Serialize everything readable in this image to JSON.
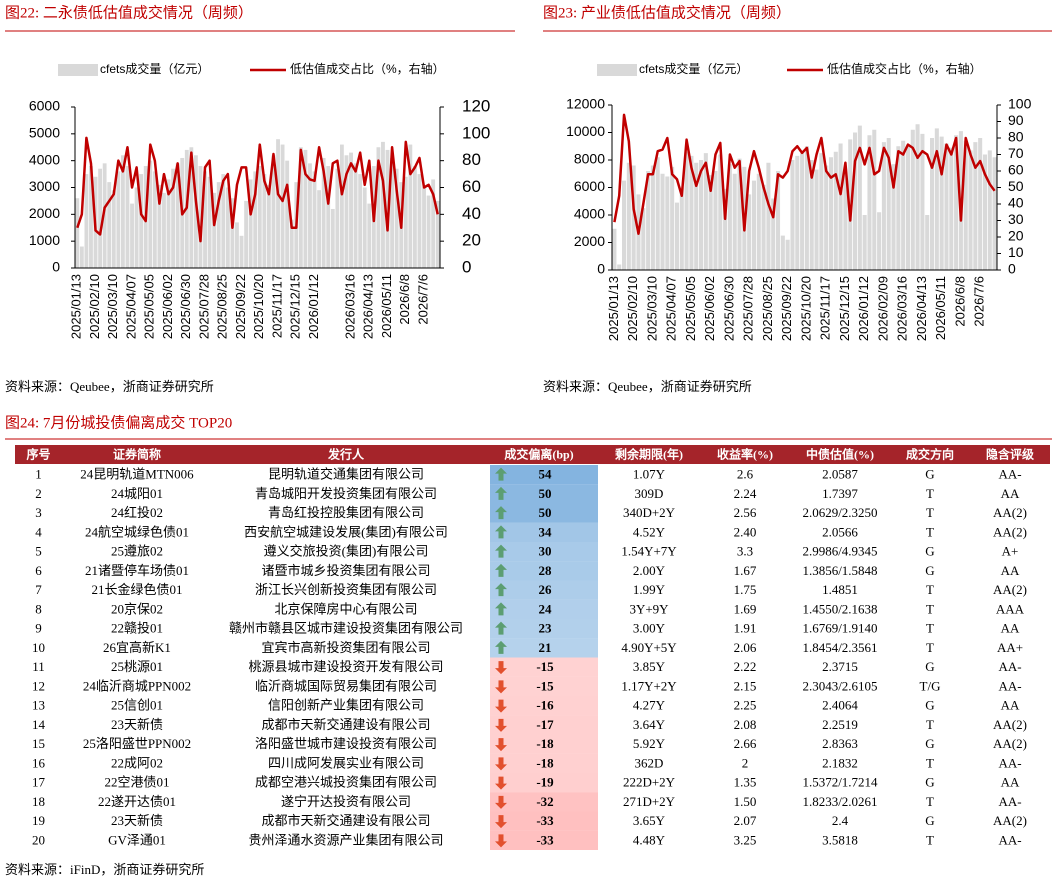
{
  "chart_data": [
    {
      "type": "bar_line",
      "title": "图22:  二永债低估值成交情况（周频）",
      "source": "资料来源：Qeubee，浙商证券研究所",
      "legend": "top",
      "grid": false,
      "categories": [
        "2025/01/13",
        null,
        null,
        null,
        "2025/02/10",
        null,
        null,
        null,
        "2025/03/10",
        null,
        null,
        null,
        "2025/04/07",
        null,
        null,
        null,
        "2025/05/05",
        null,
        null,
        null,
        "2025/06/02",
        null,
        null,
        null,
        "2025/06/30",
        null,
        null,
        null,
        "2025/07/28",
        null,
        null,
        null,
        "2025/08/25",
        null,
        null,
        null,
        "2025/09/22",
        null,
        null,
        null,
        "2025/10/20",
        null,
        null,
        null,
        "2025/11/17",
        null,
        null,
        null,
        "2025/12/15",
        null,
        null,
        null,
        "2026/01/12",
        null,
        null,
        null,
        null,
        null,
        null,
        null,
        "2026/03/16",
        null,
        null,
        null,
        "2026/04/13",
        null,
        null,
        null,
        "2026/05/11",
        null,
        null,
        null,
        "2026/6/8",
        null,
        null,
        null,
        "2026/7/6",
        null,
        null,
        null
      ],
      "series": [
        {
          "name": "cfets成交量（亿元）",
          "color": "#d9d9d9",
          "kind": "bar",
          "values": [
            2600,
            800,
            3500,
            3800,
            3400,
            3700,
            3900,
            3200,
            2900,
            3600,
            4200,
            3800,
            2400,
            3000,
            3500,
            3800,
            4000,
            3600,
            3100,
            2800,
            3300,
            3700,
            3900,
            4100,
            4400,
            4500,
            4200,
            3800,
            3600,
            3400,
            2800,
            3200,
            3500,
            3000,
            2600,
            1700,
            1200,
            2500,
            3300,
            3600,
            3800,
            3500,
            3100,
            4200,
            4800,
            4600,
            4000,
            1800,
            3200,
            4500,
            4400,
            3900,
            3600,
            2900,
            4100,
            3800,
            2200,
            3700,
            4600,
            4200,
            4300,
            3900,
            3500,
            3000,
            2400,
            3800,
            4500,
            4700,
            4400,
            4100,
            3700,
            3200,
            3400,
            4600,
            3800,
            3500,
            3000,
            2700,
            3300,
            2500
          ]
        },
        {
          "name": "低估值成交占比（%，右轴）",
          "color": "#c00000",
          "kind": "line",
          "axis": "y2",
          "values": [
            30,
            40,
            97,
            78,
            28,
            25,
            45,
            50,
            55,
            80,
            72,
            90,
            60,
            75,
            40,
            35,
            92,
            80,
            48,
            70,
            55,
            60,
            78,
            40,
            45,
            86,
            50,
            20,
            75,
            80,
            32,
            50,
            65,
            70,
            30,
            62,
            75,
            75,
            40,
            55,
            92,
            65,
            55,
            85,
            55,
            50,
            62,
            30,
            30,
            88,
            70,
            66,
            65,
            90,
            72,
            48,
            78,
            80,
            55,
            70,
            78,
            72,
            86,
            62,
            80,
            35,
            80,
            65,
            28,
            90,
            58,
            30,
            94,
            70,
            75,
            82,
            60,
            62,
            55,
            40
          ]
        }
      ],
      "ylim": [
        0,
        6000
      ],
      "yticks": [
        0,
        1000,
        2000,
        3000,
        4000,
        5000,
        6000
      ],
      "y2lim": [
        0,
        120
      ],
      "y2ticks": [
        0,
        20,
        40,
        60,
        80,
        100,
        120
      ]
    },
    {
      "type": "bar_line",
      "title": "图23:  产业债低估值成交情况（周频）",
      "source": "资料来源：Qeubee，浙商证券研究所",
      "legend": "top",
      "grid": false,
      "categories": [
        "2025/01/13",
        null,
        null,
        null,
        "2025/02/10",
        null,
        null,
        null,
        "2025/03/10",
        null,
        null,
        null,
        "2025/04/07",
        null,
        null,
        null,
        "2025/05/05",
        null,
        null,
        null,
        "2025/06/02",
        null,
        null,
        null,
        "2025/06/30",
        null,
        null,
        null,
        "2025/07/28",
        null,
        null,
        null,
        "2025/08/25",
        null,
        null,
        null,
        "2025/09/22",
        null,
        null,
        null,
        "2025/10/20",
        null,
        null,
        null,
        "2025/11/17",
        null,
        null,
        null,
        "2025/12/15",
        null,
        null,
        null,
        "2026/01/12",
        null,
        null,
        null,
        "2026/02/09",
        null,
        null,
        null,
        "2026/03/16",
        null,
        null,
        null,
        "2026/04/13",
        null,
        null,
        null,
        "2026/05/11",
        null,
        null,
        null,
        "2026/6/8",
        null,
        null,
        null,
        "2026/7/6",
        null,
        null,
        null
      ],
      "series": [
        {
          "name": "cfets成交量（亿元）",
          "color": "#d9d9d9",
          "kind": "bar",
          "values": [
            3000,
            400,
            6500,
            7800,
            7600,
            5500,
            4500,
            7200,
            7600,
            8200,
            7000,
            6800,
            7500,
            4900,
            6000,
            8600,
            8300,
            7800,
            8000,
            8500,
            6900,
            7200,
            8400,
            5900,
            7700,
            7000,
            8100,
            7500,
            5500,
            6500,
            7000,
            6200,
            7800,
            5200,
            7200,
            2500,
            2200,
            8000,
            8300,
            8500,
            9000,
            8000,
            7300,
            8500,
            7600,
            8200,
            8600,
            9200,
            7000,
            9500,
            10000,
            10500,
            4000,
            9800,
            10200,
            4200,
            9300,
            9600,
            7700,
            9000,
            9400,
            9000,
            10200,
            10600,
            9900,
            4000,
            9600,
            10300,
            9700,
            9200,
            8900,
            9800,
            10100,
            9400,
            8700,
            9300,
            9600,
            8400,
            8700,
            8200
          ]
        },
        {
          "name": "低估值成交占比（%，右轴）",
          "color": "#c00000",
          "kind": "line",
          "axis": "y2",
          "values": [
            29,
            45,
            94,
            78,
            37,
            22,
            40,
            58,
            58,
            72,
            73,
            80,
            58,
            55,
            45,
            79,
            62,
            51,
            60,
            65,
            48,
            70,
            77,
            31,
            70,
            62,
            66,
            24,
            60,
            72,
            62,
            50,
            40,
            32,
            58,
            56,
            60,
            72,
            75,
            71,
            74,
            56,
            70,
            80,
            60,
            56,
            58,
            46,
            65,
            30,
            66,
            74,
            64,
            74,
            58,
            60,
            74,
            68,
            50,
            72,
            70,
            76,
            74,
            68,
            72,
            70,
            62,
            72,
            58,
            76,
            70,
            80,
            30,
            80,
            70,
            62,
            66,
            58,
            52,
            48
          ]
        }
      ],
      "ylim": [
        0,
        12000
      ],
      "yticks": [
        0,
        2000,
        4000,
        6000,
        8000,
        10000,
        12000
      ],
      "y2lim": [
        0,
        100
      ],
      "y2ticks": [
        0,
        10,
        20,
        30,
        40,
        50,
        60,
        70,
        80,
        90,
        100
      ]
    }
  ],
  "table": {
    "caption": "图24:  7月份城投债偏离成交 TOP20",
    "source": "资料来源：iFinD，浙商证券研究所",
    "header": [
      "序号",
      "证券简称",
      "发行人",
      "成交偏离(bp)",
      "剩余期限(年)",
      "收益率(%)",
      "中债估值(%)",
      "成交方向",
      "隐含评级"
    ],
    "rows": [
      [
        "1",
        "24昆明轨道MTN006",
        "昆明轨道交通集团有限公司",
        54,
        "1.07Y",
        "2.6",
        "2.0587",
        "G",
        "AA-"
      ],
      [
        "2",
        "24城阳01",
        "青岛城阳开发投资集团有限公司",
        50,
        "309D",
        "2.24",
        "1.7397",
        "T",
        "AA"
      ],
      [
        "3",
        "24红投02",
        "青岛红投控股集团有限公司",
        50,
        "340D+2Y",
        "2.56",
        "2.0629/2.3250",
        "T",
        "AA(2)"
      ],
      [
        "4",
        "24航空城绿色债01",
        "西安航空城建设发展(集团)有限公司",
        34,
        "4.52Y",
        "2.40",
        "2.0566",
        "T",
        "AA(2)"
      ],
      [
        "5",
        "25遵旅02",
        "遵义交旅投资(集团)有限公司",
        30,
        "1.54Y+7Y",
        "3.3",
        "2.9986/4.9345",
        "G",
        "A+"
      ],
      [
        "6",
        "21诸暨停车场债01",
        "诸暨市城乡投资集团有限公司",
        28,
        "2.00Y",
        "1.67",
        "1.3856/1.5848",
        "G",
        "AA"
      ],
      [
        "7",
        "21长金绿色债01",
        "浙江长兴创新投资集团有限公司",
        26,
        "1.99Y",
        "1.75",
        "1.4851",
        "T",
        "AA(2)"
      ],
      [
        "8",
        "20京保02",
        "北京保障房中心有限公司",
        24,
        "3Y+9Y",
        "1.69",
        "1.4550/2.1638",
        "T",
        "AAA"
      ],
      [
        "9",
        "22赣投01",
        "赣州市赣县区城市建设投资集团有限公司",
        23,
        "3.00Y",
        "1.91",
        "1.6769/1.9140",
        "T",
        "AA"
      ],
      [
        "10",
        "26宜高新K1",
        "宜宾市高新投资集团有限公司",
        21,
        "4.90Y+5Y",
        "2.06",
        "1.8454/2.3561",
        "T",
        "AA+"
      ],
      [
        "11",
        "25桃源01",
        "桃源县城市建设投资开发有限公司",
        -15,
        "3.85Y",
        "2.22",
        "2.3715",
        "G",
        "AA-"
      ],
      [
        "12",
        "24临沂商城PPN002",
        "临沂商城国际贸易集团有限公司",
        -15,
        "1.17Y+2Y",
        "2.15",
        "2.3043/2.6105",
        "T/G",
        "AA-"
      ],
      [
        "13",
        "25信创01",
        "信阳创新产业集团有限公司",
        -16,
        "4.27Y",
        "2.25",
        "2.4064",
        "G",
        "AA"
      ],
      [
        "14",
        "23天新债",
        "成都市天新交通建设有限公司",
        -17,
        "3.64Y",
        "2.08",
        "2.2519",
        "T",
        "AA(2)"
      ],
      [
        "15",
        "25洛阳盛世PPN002",
        "洛阳盛世城市建设投资有限公司",
        -18,
        "5.92Y",
        "2.66",
        "2.8363",
        "G",
        "AA(2)"
      ],
      [
        "16",
        "22成阿02",
        "四川成阿发展实业有限公司",
        -18,
        "362D",
        "2",
        "2.1832",
        "T",
        "AA-"
      ],
      [
        "17",
        "22空港债01",
        "成都空港兴城投资集团有限公司",
        -19,
        "222D+2Y",
        "1.35",
        "1.5372/1.7214",
        "G",
        "AA"
      ],
      [
        "18",
        "22遂开达债01",
        "遂宁开达投资有限公司",
        -32,
        "271D+2Y",
        "1.50",
        "1.8233/2.0261",
        "T",
        "AA-"
      ],
      [
        "19",
        "23天新债",
        "成都市天新交通建设有限公司",
        -33,
        "3.65Y",
        "2.07",
        "2.4",
        "G",
        "AA(2)"
      ],
      [
        "20",
        "GV泽通01",
        "贵州泽通水资源产业集团有限公司",
        -33,
        "4.48Y",
        "3.25",
        "3.5818",
        "T",
        "AA-"
      ]
    ]
  }
}
